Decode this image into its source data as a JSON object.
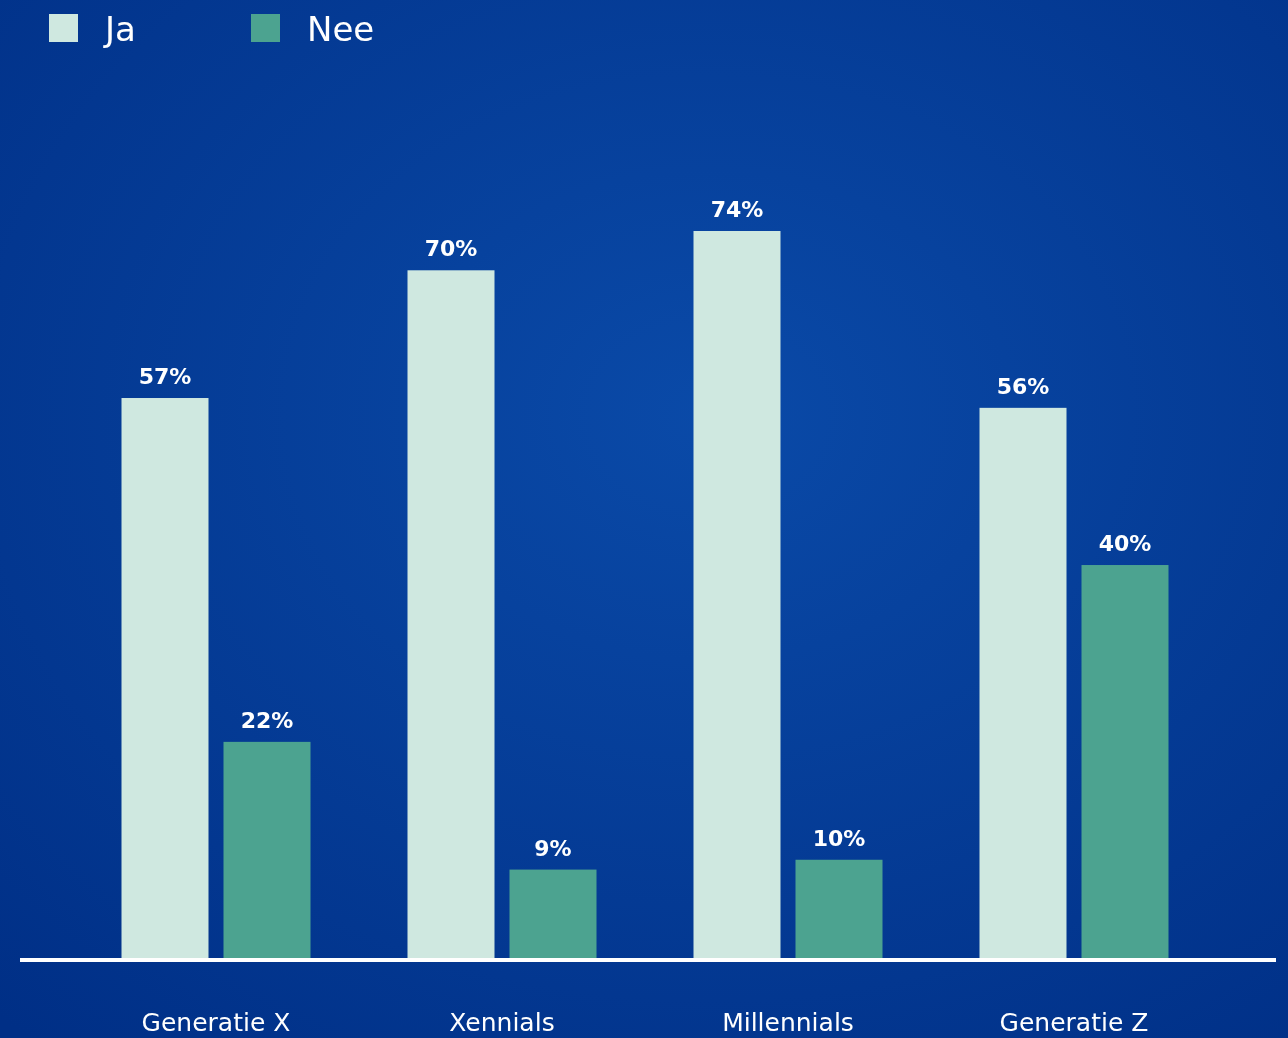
{
  "chart_data": {
    "type": "bar",
    "data_labels": true,
    "legend": "top left",
    "categories": [
      "Generatie X",
      "Xennials",
      "Millennials",
      "Generatie Z"
    ],
    "series": [
      {
        "name": "Ja",
        "color": "#cfe8e0",
        "values": [
          57,
          70,
          74,
          56
        ],
        "value_labels": [
          "57%",
          "70%",
          "74%",
          "56%"
        ]
      },
      {
        "name": "Nee",
        "color": "#4ca390",
        "values": [
          22,
          9,
          10,
          40
        ],
        "value_labels": [
          "22%",
          "9%",
          "10%",
          "40%"
        ]
      }
    ]
  }
}
